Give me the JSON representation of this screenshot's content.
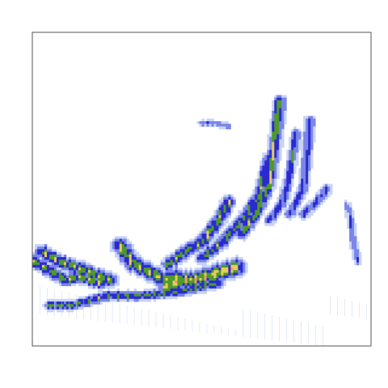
{
  "chart_data": {
    "type": "heatmap",
    "title": "",
    "xlabel": "",
    "ylabel": "",
    "xlim": [
      0,
      1
    ],
    "ylim": [
      0,
      1
    ],
    "grid": false,
    "legend": "none",
    "axis_ticks": false,
    "frame_color": "#555555",
    "background_color": "#ffffff",
    "colormap": [
      {
        "level": 0.1,
        "color": "#c8d4f5"
      },
      {
        "level": 0.22,
        "color": "#7a86e8"
      },
      {
        "level": 0.38,
        "color": "#2a2ad0"
      },
      {
        "level": 0.55,
        "color": "#4f9a2a"
      },
      {
        "level": 0.72,
        "color": "#e8cc5a"
      },
      {
        "level": 0.88,
        "color": "#ee9a6e"
      }
    ],
    "ridges": [
      {
        "name": "",
        "peak": 0.85,
        "width": 0.012,
        "points": [
          [
            0.005,
            0.27
          ],
          [
            0.05,
            0.24
          ],
          [
            0.1,
            0.21
          ],
          [
            0.14,
            0.22
          ],
          [
            0.2,
            0.2
          ]
        ]
      },
      {
        "name": "",
        "peak": 0.85,
        "width": 0.014,
        "points": [
          [
            0.03,
            0.3
          ],
          [
            0.08,
            0.27
          ],
          [
            0.13,
            0.25
          ],
          [
            0.18,
            0.23
          ],
          [
            0.23,
            0.21
          ]
        ]
      },
      {
        "name": "",
        "peak": 0.9,
        "width": 0.016,
        "points": [
          [
            0.26,
            0.32
          ],
          [
            0.3,
            0.26
          ],
          [
            0.34,
            0.24
          ],
          [
            0.39,
            0.21
          ],
          [
            0.43,
            0.22
          ]
        ]
      },
      {
        "name": "",
        "peak": 1.0,
        "width": 0.018,
        "points": [
          [
            0.4,
            0.19
          ],
          [
            0.44,
            0.21
          ],
          [
            0.48,
            0.21
          ],
          [
            0.54,
            0.23
          ],
          [
            0.6,
            0.25
          ]
        ]
      },
      {
        "name": "",
        "peak": 0.8,
        "width": 0.013,
        "points": [
          [
            0.4,
            0.26
          ],
          [
            0.45,
            0.3
          ],
          [
            0.5,
            0.33
          ],
          [
            0.55,
            0.4
          ],
          [
            0.58,
            0.46
          ]
        ]
      },
      {
        "name": "",
        "peak": 0.75,
        "width": 0.012,
        "points": [
          [
            0.5,
            0.28
          ],
          [
            0.56,
            0.33
          ],
          [
            0.62,
            0.4
          ],
          [
            0.67,
            0.48
          ],
          [
            0.7,
            0.6
          ]
        ]
      },
      {
        "name": "",
        "peak": 0.8,
        "width": 0.012,
        "points": [
          [
            0.62,
            0.36
          ],
          [
            0.66,
            0.42
          ],
          [
            0.7,
            0.52
          ],
          [
            0.72,
            0.68
          ],
          [
            0.73,
            0.78
          ]
        ]
      },
      {
        "name": "",
        "peak": 0.6,
        "width": 0.01,
        "points": [
          [
            0.7,
            0.4
          ],
          [
            0.74,
            0.46
          ],
          [
            0.76,
            0.55
          ],
          [
            0.78,
            0.68
          ]
        ]
      },
      {
        "name": "",
        "peak": 0.6,
        "width": 0.01,
        "points": [
          [
            0.76,
            0.42
          ],
          [
            0.8,
            0.5
          ],
          [
            0.81,
            0.6
          ],
          [
            0.82,
            0.72
          ]
        ]
      },
      {
        "name": "",
        "peak": 0.55,
        "width": 0.011,
        "points": [
          [
            0.8,
            0.42
          ],
          [
            0.84,
            0.46
          ],
          [
            0.87,
            0.5
          ]
        ]
      },
      {
        "name": "",
        "peak": 0.75,
        "width": 0.01,
        "points": [
          [
            0.05,
            0.13
          ],
          [
            0.12,
            0.13
          ],
          [
            0.22,
            0.16
          ],
          [
            0.32,
            0.16
          ],
          [
            0.42,
            0.17
          ],
          [
            0.55,
            0.2
          ]
        ]
      },
      {
        "name": "",
        "peak": 0.45,
        "width": 0.007,
        "points": [
          [
            0.5,
            0.71
          ],
          [
            0.54,
            0.71
          ],
          [
            0.58,
            0.7
          ]
        ]
      },
      {
        "name": "",
        "peak": 0.45,
        "width": 0.008,
        "points": [
          [
            0.93,
            0.45
          ],
          [
            0.94,
            0.4
          ],
          [
            0.95,
            0.32
          ],
          [
            0.96,
            0.27
          ]
        ]
      }
    ]
  }
}
